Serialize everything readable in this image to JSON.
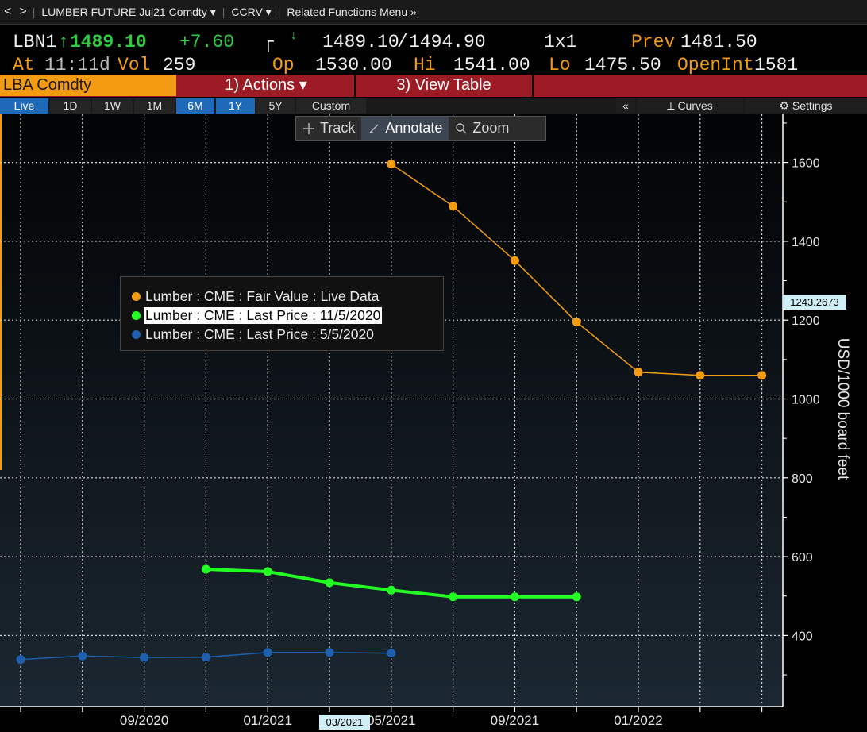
{
  "nav": {
    "back": "<",
    "forward": ">",
    "security": "LUMBER FUTURE Jul21 Comdty ▾",
    "function": "CCRV ▾",
    "related": "Related Functions Menu »"
  },
  "quote": {
    "ticker": "LBN1",
    "last": "1489.10",
    "change": "+7.60",
    "bid": "1489.10",
    "ask": "1494.90",
    "size": "1x1",
    "prev_label": "Prev",
    "prev": "1481.50",
    "at_label": "At",
    "time": "11:11d",
    "vol_label": "Vol",
    "vol": "259",
    "op_label": "Op",
    "open": "1530.00",
    "hi_label": "Hi",
    "high": "1541.00",
    "lo_label": "Lo",
    "low": "1475.50",
    "oi_label": "OpenInt",
    "open_interest": "1581"
  },
  "funcbar": {
    "ticker": "LBA Comdty",
    "actions": "1) Actions ▾",
    "view_table": "3) View Table"
  },
  "periods": [
    "Live",
    "1D",
    "1W",
    "1M",
    "6M",
    "1Y",
    "5Y",
    "Custom"
  ],
  "right_controls": {
    "collapse": "«",
    "curves": "Curves",
    "settings": "Settings"
  },
  "toolbar": {
    "track": "Track",
    "annotate": "Annotate",
    "zoom": "Zoom"
  },
  "colors": {
    "fair_value": "#f39c12",
    "last_nov": "#22ff22",
    "last_may": "#1f5fb0",
    "accent_red": "#9c1b25"
  },
  "chart_data": {
    "type": "line",
    "ylabel": "USD/1000 board feet",
    "ylim": [
      280,
      1680
    ],
    "yticks": [
      400,
      600,
      800,
      1000,
      1200,
      1400,
      1600
    ],
    "xticks": [
      "09/2020",
      "01/2021",
      "05/2021",
      "09/2021",
      "01/2022"
    ],
    "cursor_label": "03/2021",
    "last_value_label": "1243.2673",
    "legend_position": "top-left",
    "grid": true,
    "series": [
      {
        "name": "Lumber : CME : Fair Value : Live Data",
        "x": [
          "2021-05",
          "2021-07",
          "2021-09",
          "2021-11",
          "2022-01",
          "2022-03",
          "2022-05"
        ],
        "values": [
          1596,
          1489,
          1351,
          1195,
          1068,
          1060,
          1060
        ]
      },
      {
        "name": "Lumber : CME : Last Price : 11/5/2020",
        "x": [
          "2020-11",
          "2021-01",
          "2021-03",
          "2021-05",
          "2021-07",
          "2021-09",
          "2021-11"
        ],
        "values": [
          568,
          562,
          534,
          515,
          498,
          498,
          498
        ]
      },
      {
        "name": "Lumber : CME : Last Price : 5/5/2020",
        "x": [
          "2020-05",
          "2020-07",
          "2020-09",
          "2020-11",
          "2021-01",
          "2021-03",
          "2021-05"
        ],
        "values": [
          339,
          348,
          344,
          345,
          357,
          357,
          355
        ]
      }
    ]
  }
}
